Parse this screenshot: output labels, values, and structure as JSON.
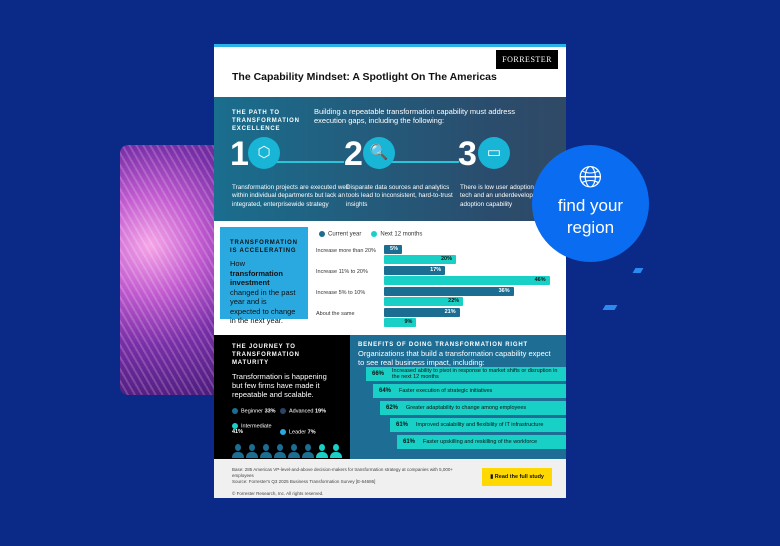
{
  "region_button": {
    "label_line1": "find your",
    "label_line2": "region",
    "icon": "globe-icon",
    "color": "#0a6cf0"
  },
  "doc": {
    "brand": "FORRESTER",
    "title": "The Capability Mindset: A Spotlight On The Americas",
    "path": {
      "heading": "THE PATH TO TRANSFORMATION EXCELLENCE",
      "lead": "Building a repeatable transformation capability must address execution gaps, including the following:",
      "steps": [
        {
          "num": "1",
          "icon": "box-icon",
          "text": "Transformation projects are executed well within individual departments but lack an integrated, enterprisewide strategy"
        },
        {
          "num": "2",
          "icon": "document-search-icon",
          "text": "Disparate data sources and analytics tools lead to inconsistent, hard-to-trust insights"
        },
        {
          "num": "3",
          "icon": "computers-icon",
          "text": "There is low user adoption of new tech and an underdeveloped digital adoption capability"
        }
      ]
    },
    "accelerating": {
      "heading": "TRANSFORMATION IS ACCELERATING",
      "text_pre": "How ",
      "text_bold": "transformation investment",
      "text_post": " changed in the past year and is expected to change in the next year."
    },
    "chart_data": {
      "type": "bar",
      "series": [
        {
          "name": "Current year",
          "color": "#1c6d92",
          "values": [
            5,
            17,
            36,
            21
          ]
        },
        {
          "name": "Next 12 months",
          "color": "#18d0c6",
          "values": [
            20,
            46,
            22,
            9
          ]
        }
      ],
      "categories": [
        "Increase more than 20%",
        "Increase 11% to 20%",
        "Increase 5% to 10%",
        "About the same"
      ],
      "unit": "%"
    },
    "maturity": {
      "heading": "THE JOURNEY TO TRANSFORMATION MATURITY",
      "text": "Transformation is happening but few firms have made it repeatable and scalable.",
      "legend": [
        {
          "label": "Beginner",
          "value": "33%",
          "color": "#1c6d92"
        },
        {
          "label": "Advanced",
          "value": "19%",
          "color": "#2a4563"
        },
        {
          "label": "Intermediate",
          "value": "41%",
          "color": "#18d0c6"
        },
        {
          "label": "Leader",
          "value": "7%",
          "color": "#2aa8e0"
        }
      ],
      "people": [
        "#1c6d92",
        "#1c6d92",
        "#1c6d92",
        "#1c6d92",
        "#1c6d92",
        "#1c6d92",
        "#18d0c6",
        "#18d0c6",
        "#18d0c6",
        "#18d0c6",
        "#18d0c6",
        "#18d0c6",
        "#2a4563",
        "#2a4563",
        "#2a4563",
        "#2aa8e0"
      ]
    },
    "benefits": {
      "heading": "BENEFITS OF DOING TRANSFORMATION RIGHT",
      "lead": "Organizations that build a transformation capability expect to see real business impact, including:",
      "items": [
        {
          "pct": "66%",
          "text": "Increased ability to pivot in response to market shifts or disruption in the next 12 months"
        },
        {
          "pct": "64%",
          "text": "Faster execution of strategic initiatives"
        },
        {
          "pct": "62%",
          "text": "Greater adaptability to change among employees"
        },
        {
          "pct": "61%",
          "text": "Improved scalability and flexibility of IT infrastructure"
        },
        {
          "pct": "61%",
          "text": "Faster upskilling and reskilling of the workforce"
        }
      ]
    },
    "footer": {
      "base": "Base: 285 Americas VP-level-and-above decision-makers for transformation strategy at companies with 5,000+ employees",
      "source": "Source: Forrester's Q3 2025 Business Transformation Survey [E-64686]",
      "copyright": "© Forrester Research, Inc. All rights reserved.",
      "cta": "Read the full study"
    }
  }
}
